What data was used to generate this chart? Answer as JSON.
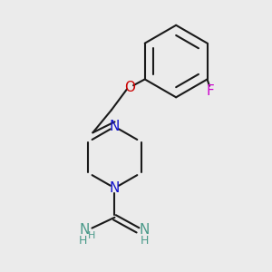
{
  "background_color": "#ebebeb",
  "bond_color": "#1a1a1a",
  "N_color": "#1414cc",
  "NH_color": "#4a9a8a",
  "O_color": "#cc0000",
  "F_color": "#cc00cc",
  "line_width": 1.5,
  "figsize": [
    3.0,
    3.0
  ],
  "dpi": 100,
  "xlim": [
    0,
    10
  ],
  "ylim": [
    0,
    10
  ]
}
